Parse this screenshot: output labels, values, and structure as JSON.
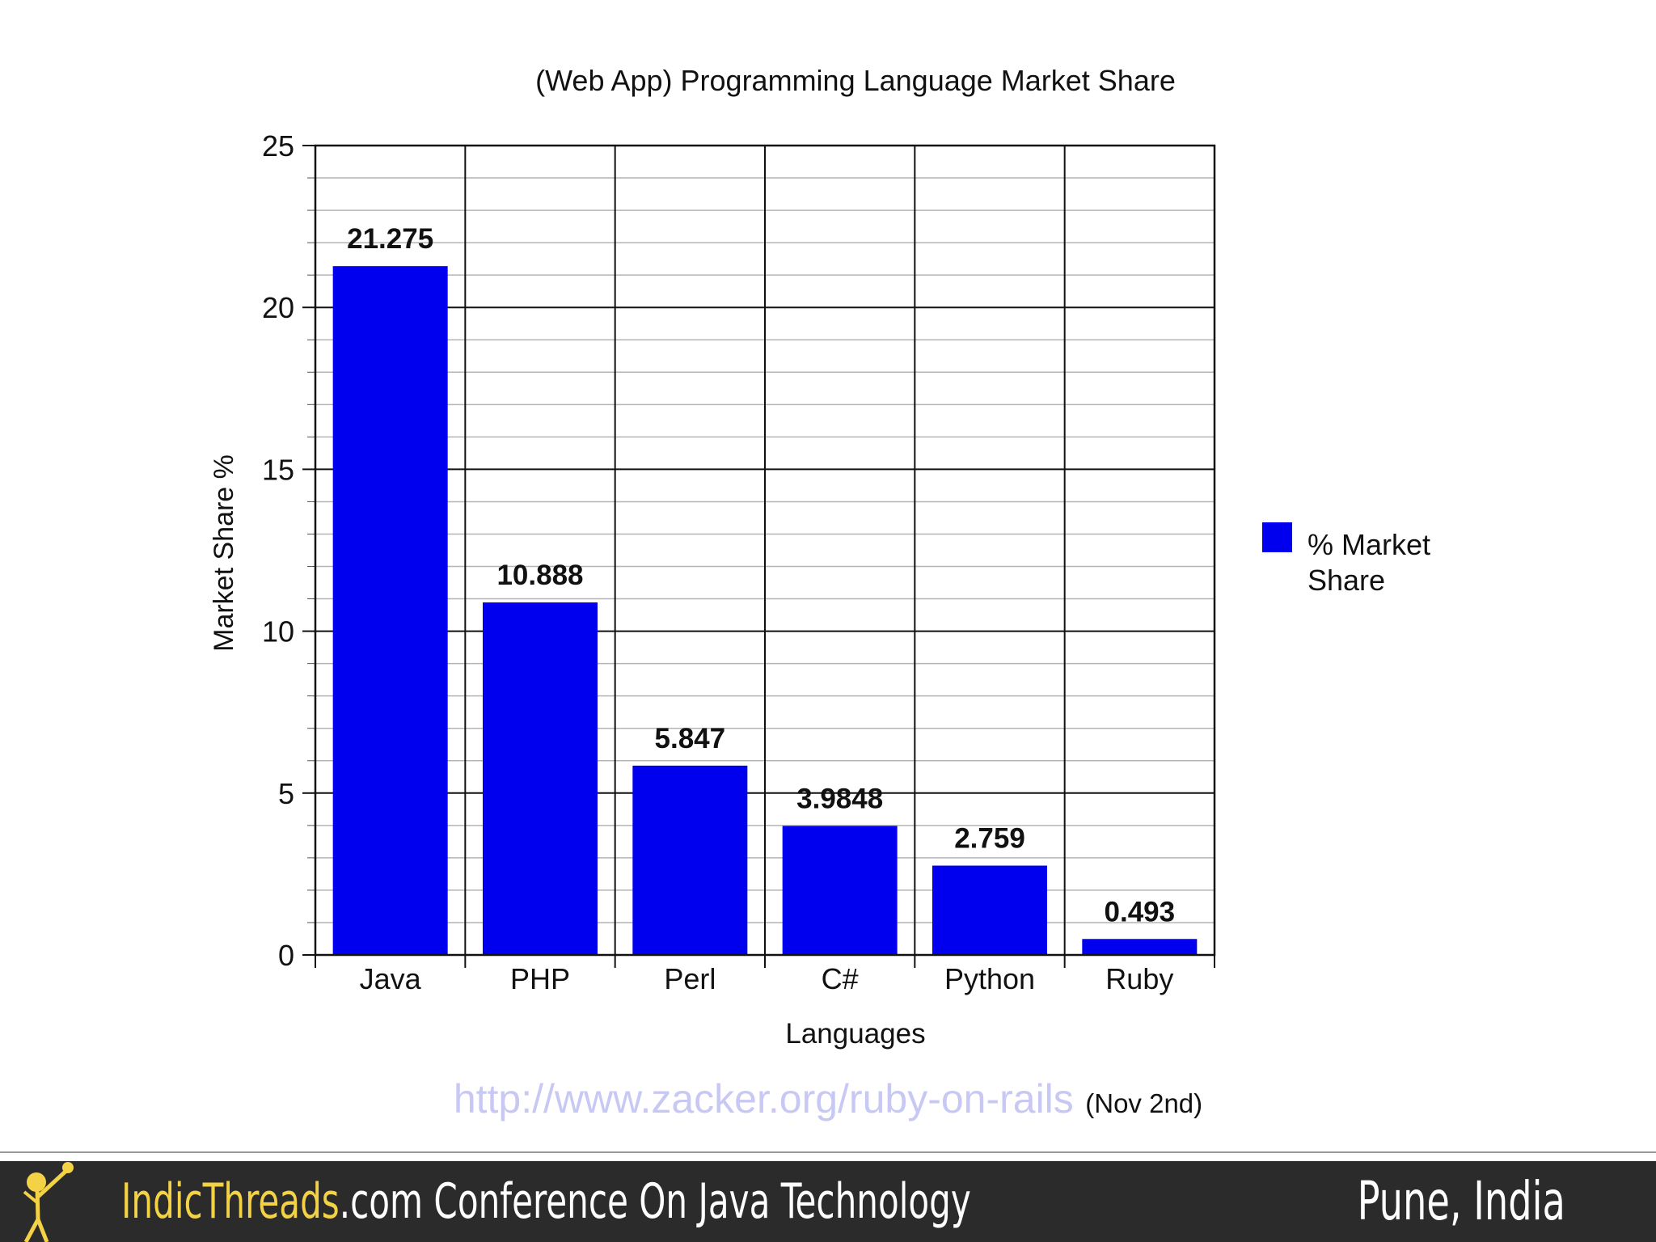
{
  "chart_data": {
    "type": "bar",
    "title": "(Web App) Programming Language Market Share",
    "xlabel": "Languages",
    "ylabel": "Market Share %",
    "categories": [
      "Java",
      "PHP",
      "Perl",
      "C#",
      "Python",
      "Ruby"
    ],
    "series": [
      {
        "name": "% Market Share",
        "values": [
          21.275,
          10.888,
          5.847,
          3.9848,
          2.759,
          0.493
        ],
        "color": "#0000ee"
      }
    ],
    "data_labels": [
      "21.275",
      "10.888",
      "5.847",
      "3.9848",
      "2.759",
      "0.493"
    ],
    "ylim": [
      0,
      25
    ],
    "yticks": [
      0,
      5,
      10,
      15,
      20,
      25
    ],
    "ytick_labels": [
      "0",
      "5",
      "10",
      "15",
      "20",
      "25"
    ],
    "minor_step": 1,
    "grid": true,
    "legend": {
      "position": "right",
      "lines": [
        "% Market",
        "Share"
      ]
    }
  },
  "source": {
    "url_text": "http://www.zacker.org/ruby-on-rails",
    "date_text": "(Nov 2nd)"
  },
  "footer": {
    "brand": "IndicThreads",
    "title_rest": ".com Conference On Java Technology",
    "location": "Pune, India",
    "logo": "stick-figure-logo",
    "colors": {
      "background": "#2b2b2b",
      "brand": "#f3d246",
      "text": "#ffffff"
    }
  }
}
